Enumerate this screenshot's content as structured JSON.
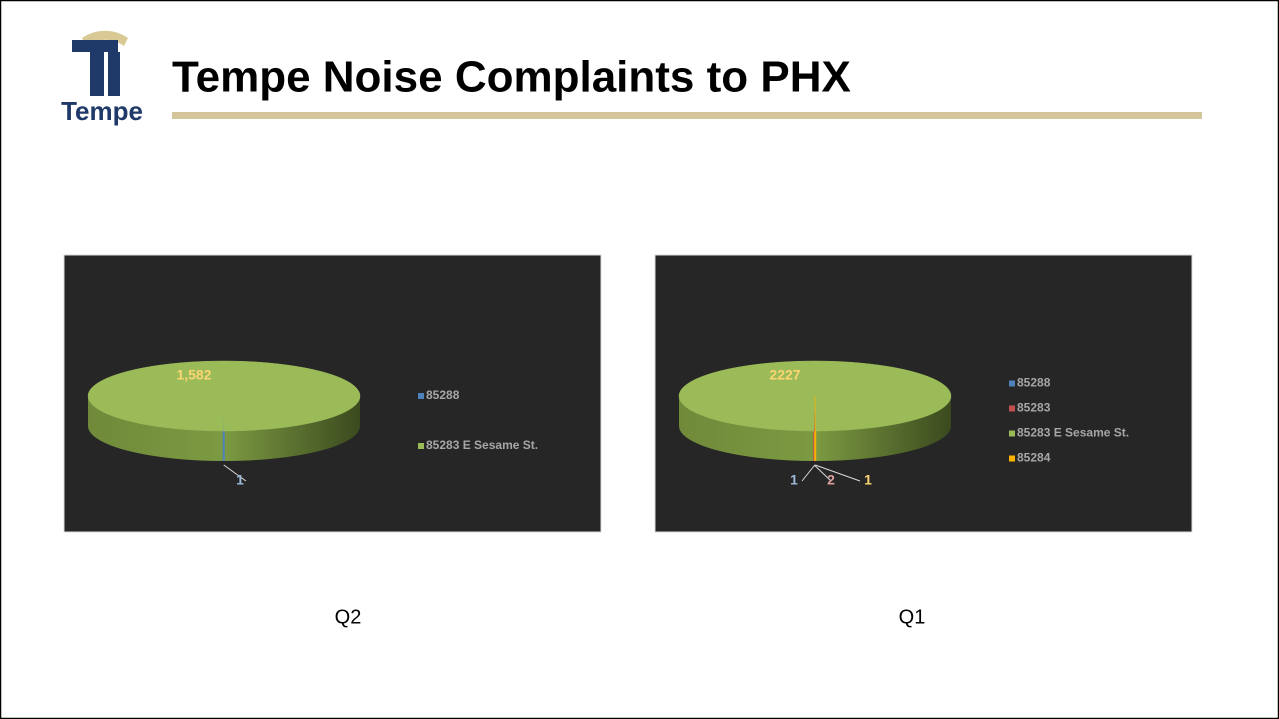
{
  "title": "Tempe Noise Complaints to PHX",
  "logo_text": "Tempe",
  "chart_data": [
    {
      "type": "pie3d",
      "caption": "Q2",
      "categories": [
        "85288",
        "85283 E Sesame St."
      ],
      "values": [
        1,
        1582
      ],
      "value_labels": [
        "1",
        "1,582"
      ],
      "colors": [
        "#4f81bd",
        "#9bbb59"
      ]
    },
    {
      "type": "pie3d",
      "caption": "Q1",
      "categories": [
        "85288",
        "85283",
        "85283 E Sesame St.",
        "85284"
      ],
      "values": [
        1,
        2,
        2227,
        1
      ],
      "colors": [
        "#4f81bd",
        "#c0504d",
        "#9bbb59",
        "#f9b200"
      ]
    }
  ]
}
